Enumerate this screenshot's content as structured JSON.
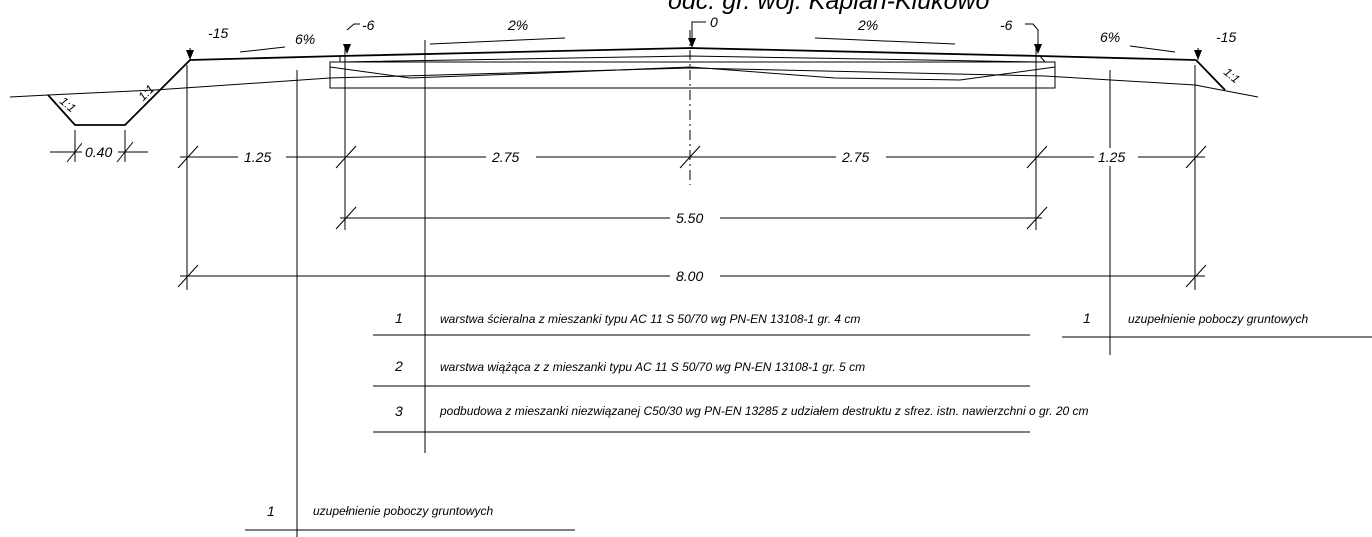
{
  "header": {
    "title": "odc. gr. woj. Kaplan-Klukowo"
  },
  "elevations": {
    "left_ditch_edge": "-15",
    "left_lane_edge": "-6",
    "axis": "0",
    "right_lane_edge": "-6",
    "right_ditch_edge": "-15"
  },
  "slopes": {
    "left_shoulder": "6%",
    "left_lane": "2%",
    "right_lane": "2%",
    "right_shoulder": "6%",
    "ditch_left_inner": "1:1",
    "ditch_left_outer": "1:1",
    "ditch_right": "1:1"
  },
  "dimensions": {
    "ditch_bottom": "0.40",
    "left_shoulder_width": "1.25",
    "left_lane_width": "2.75",
    "right_lane_width": "2.75",
    "right_shoulder_width": "1.25",
    "carriageway_width": "5.50",
    "total_width": "8.00"
  },
  "layers": [
    {
      "num": "1",
      "desc": "warstwa ścieralna z mieszanki typu AC 11 S 50/70 wg PN-EN 13108-1 gr. 4 cm"
    },
    {
      "num": "2",
      "desc": "warstwa wiążąca z z mieszanki typu AC 11 S 50/70 wg PN-EN 13108-1 gr. 5 cm"
    },
    {
      "num": "3",
      "desc": "podbudowa z mieszanki niezwiązanej C50/30 wg PN-EN 13285  z udziałem destruktu z  sfrez. istn. nawierzchni o gr. 20 cm"
    }
  ],
  "shoulder_right": {
    "num": "1",
    "desc": "uzupełnienie poboczy gruntowych"
  },
  "shoulder_left": {
    "num": "1",
    "desc": "uzupełnienie poboczy gruntowych"
  }
}
